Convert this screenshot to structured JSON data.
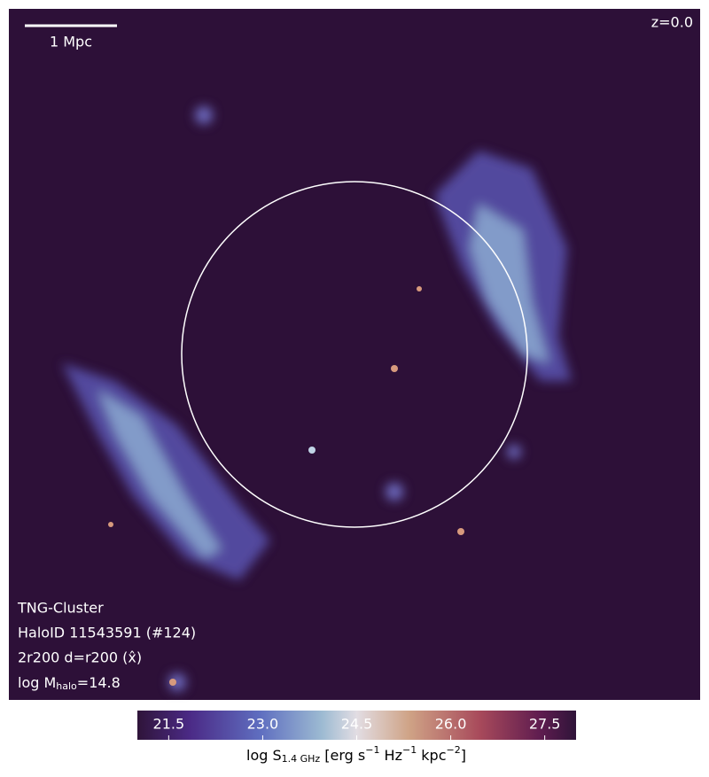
{
  "image": {
    "scale_bar": "1 Mpc",
    "redshift": "z=0.0",
    "info": [
      "TNG-Cluster",
      "HaloID 11543591 (#124)",
      "2r200 d=r200 (x̂)"
    ],
    "mass": {
      "prefix": "log M",
      "sub": "halo",
      "suffix": "=14.8"
    }
  },
  "colorbar": {
    "lim": [
      21.0,
      28.0
    ],
    "ticks": [
      21.5,
      {
        "value": 23.0,
        "label": "23.0"
      },
      24.5,
      {
        "value": 26.0,
        "label": "26.0"
      },
      27.5
    ],
    "label": {
      "main": "log S",
      "sub": "1.4 GHz",
      "p1": " [erg s",
      "e1": "−1",
      "p2": " Hz",
      "e2": "−1",
      "p3": " kpc",
      "e3": "−2",
      "p4": "]"
    }
  }
}
